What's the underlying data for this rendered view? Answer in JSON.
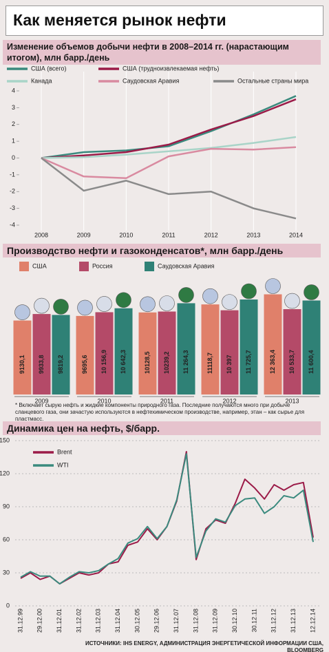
{
  "title": "Как меняется рынок нефти",
  "footnote": "* Включает сырую нефть и жидкие компоненты природного газа. Последние получаются много при добыче сланцевого газа, они зачастую используются в нефтехимическом производстве, например, этан – как сырье для пластмасс.",
  "source": "ИСТОЧНИКИ: IHS ENERGY, АДМИНИСТРАЦИЯ ЭНЕРГЕТИЧЕСКОЙ ИНФОРМАЦИИ США, BLOOMBERG",
  "chart_data": [
    {
      "type": "line",
      "title": "Изменение объемов добычи нефти в 2008–2014 гг. (нарастающим итогом), млн барр./день",
      "categories": [
        "2008",
        "2009",
        "2010",
        "2011",
        "2012",
        "2013",
        "2014"
      ],
      "series": [
        {
          "name": "США (всего)",
          "color": "#3a8a7e",
          "values": [
            0,
            0.35,
            0.45,
            0.7,
            1.6,
            2.6,
            3.7
          ]
        },
        {
          "name": "США (трудноизвлекаемая нефть)",
          "color": "#9b1b48",
          "values": [
            0,
            0.15,
            0.35,
            0.8,
            1.7,
            2.5,
            3.5
          ]
        },
        {
          "name": "Канада",
          "color": "#a9d4c8",
          "values": [
            0,
            0.05,
            0.2,
            0.4,
            0.6,
            0.9,
            1.25
          ]
        },
        {
          "name": "Саудовская Аравия",
          "color": "#d98aa0",
          "values": [
            0,
            -1.1,
            -1.2,
            0.1,
            0.55,
            0.5,
            0.65
          ]
        },
        {
          "name": "Остальные страны мира",
          "color": "#8a8a8a",
          "values": [
            0,
            -1.95,
            -1.35,
            -2.15,
            -2.0,
            -3.0,
            -3.6
          ]
        }
      ],
      "ylim": [
        -4,
        4
      ],
      "yticks": [
        -4,
        -3,
        -2,
        -1,
        0,
        1,
        2,
        3,
        4
      ],
      "grid": false
    },
    {
      "type": "bar",
      "title": "Производство нефти и газоконденсатов*, млн барр./день",
      "categories": [
        "2009",
        "2010",
        "2011",
        "2012",
        "2013"
      ],
      "series": [
        {
          "name": "США",
          "color": "#e0806a",
          "values": [
            9130.1,
            9695.6,
            10128.5,
            11118.7,
            12363.4
          ],
          "value_labels": [
            "9130,1",
            "9695,6",
            "10128,5",
            "11118,7",
            "12 363,4"
          ]
        },
        {
          "name": "Россия",
          "color": "#b44a68",
          "values": [
            9933.8,
            10156.9,
            10239.2,
            10397,
            10533.7
          ],
          "value_labels": [
            "9933,8",
            "10 156,9",
            "10239,2",
            "10 397",
            "10 533,7"
          ]
        },
        {
          "name": "Саудовская Аравия",
          "color": "#2f8176",
          "values": [
            9819.2,
            10642.3,
            11264.3,
            11725.7,
            11600.4
          ],
          "value_labels": [
            "9819,2",
            "10 642,3",
            "11 264,3",
            "11 725,7",
            "11 600,4"
          ]
        }
      ],
      "ylim": [
        0,
        13000
      ]
    },
    {
      "type": "line",
      "title": "Динамика цен на нефть, $/барр.",
      "categories": [
        "31.12.99",
        null,
        "29.12.00",
        null,
        "31.12.01",
        null,
        "31.12.02",
        null,
        "31.12.03",
        null,
        "31.12.04",
        null,
        "30.12.05",
        null,
        "29.12.06",
        null,
        "31.12.07",
        null,
        "31.12.08",
        null,
        "31.12.09",
        null,
        "30.12.10",
        null,
        "30.12.11",
        null,
        "31.12.12",
        null,
        "31.12.13",
        null,
        "12.12.14"
      ],
      "series": [
        {
          "name": "Brent",
          "color": "#9b1b48",
          "values": [
            25,
            30,
            24,
            27,
            20,
            25,
            30,
            28,
            30,
            38,
            40,
            55,
            58,
            70,
            60,
            72,
            95,
            140,
            42,
            70,
            78,
            75,
            93,
            115,
            107,
            97,
            110,
            105,
            110,
            112,
            62
          ]
        },
        {
          "name": "WTI",
          "color": "#3a8a7e",
          "values": [
            26,
            31,
            27,
            27,
            20,
            26,
            31,
            30,
            32,
            38,
            43,
            57,
            61,
            72,
            61,
            72,
            96,
            138,
            44,
            68,
            79,
            76,
            91,
            97,
            98,
            84,
            90,
            100,
            98,
            105,
            58
          ]
        }
      ],
      "ylim": [
        0,
        150
      ],
      "yticks": [
        0,
        30,
        60,
        90,
        120,
        150
      ],
      "grid": true
    }
  ]
}
